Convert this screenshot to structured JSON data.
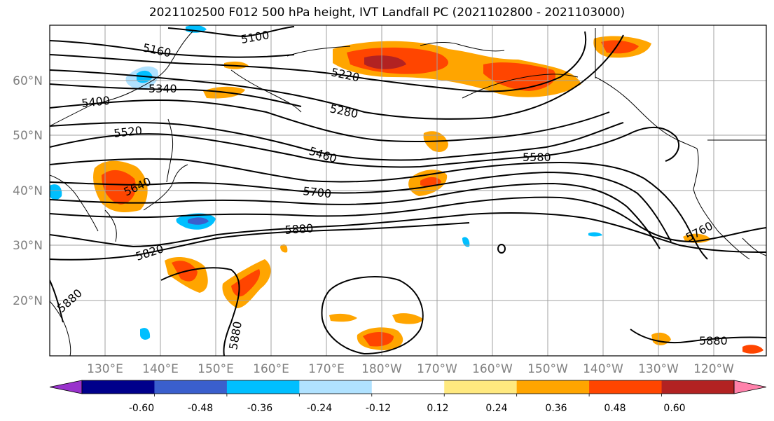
{
  "title": "2021102500 F012 500 hPa height, IVT Landfall PC (2021102800 - 2021103000)",
  "lat_labels": [
    "60°N",
    "50°N",
    "40°N",
    "30°N",
    "20°N"
  ],
  "lon_labels": [
    "130°E",
    "140°E",
    "150°E",
    "160°E",
    "170°E",
    "180°W",
    "170°W",
    "160°W",
    "150°W",
    "140°W",
    "130°W",
    "120°W"
  ],
  "contour_labels": [
    "5100",
    "5160",
    "5220",
    "5280",
    "5340",
    "5400",
    "5460",
    "5520",
    "5580",
    "5640",
    "5700",
    "5760",
    "5820",
    "5880",
    "5880",
    "5880",
    "5880"
  ],
  "colorbar": {
    "tick_labels": [
      "-0.60",
      "-0.48",
      "-0.36",
      "-0.24",
      "-0.12",
      "0.12",
      "0.24",
      "0.36",
      "0.48",
      "0.60"
    ],
    "colors": [
      "#9932cc",
      "#00008b",
      "#3a5fcd",
      "#00bfff",
      "#b0e2ff",
      "#ffffff",
      "#ffe97f",
      "#ffa500",
      "#ff4500",
      "#b22222",
      "#ff82ab"
    ]
  }
}
